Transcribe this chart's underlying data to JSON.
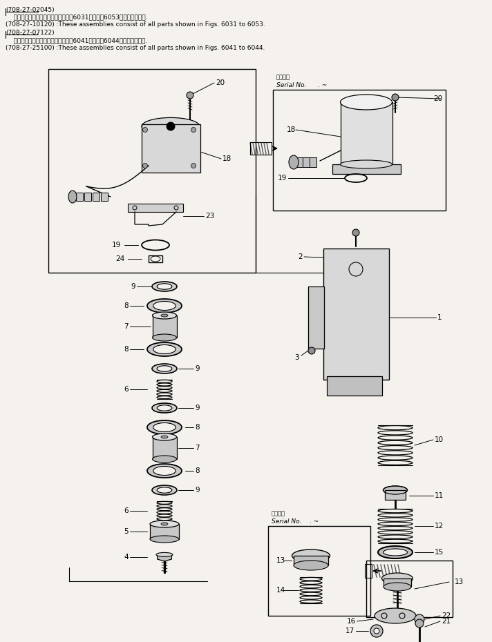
{
  "bg_color": "#f5f2ee",
  "title_lines": [
    [
      "(708-27-02045)",
      8,
      10,
      6.5,
      "normal"
    ],
    [
      "    これらのアセンブリの構成製品は第6031図から第6053図まで含みます.",
      8,
      20,
      6.5,
      "normal"
    ],
    [
      "(708-27-10120) :These assemblies consist of all parts shown in Figs. 6031 to 6053.",
      8,
      31,
      6.5,
      "normal"
    ],
    [
      "(708-27-07122)",
      8,
      43,
      6.5,
      "normal"
    ],
    [
      "    これらのアセンブリの構成製品は第6041図から第6044図まで含みます.",
      8,
      54,
      6.5,
      "normal"
    ],
    [
      "(708-27-25100) :These assemblies consist of all parts shown in Figs. 6041 to 6044.",
      8,
      65,
      6.5,
      "normal"
    ]
  ],
  "fig_width": 7.12,
  "fig_height": 9.3,
  "line_color": "black",
  "part_color": "#e8e8e8",
  "part_color2": "#d0d0d0",
  "label_fs": 7.5
}
